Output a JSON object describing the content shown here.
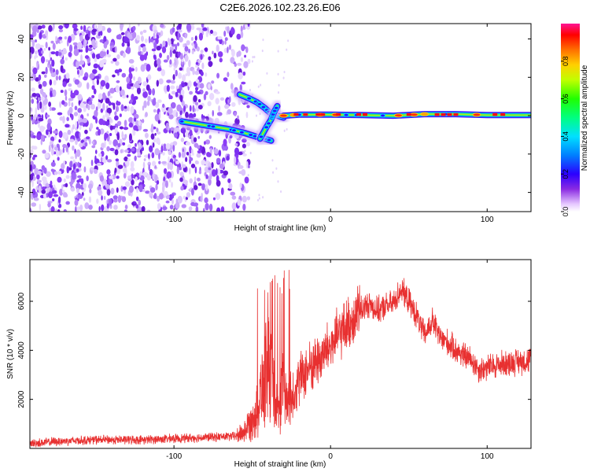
{
  "title": "C2E6.2026.102.23.26.E06",
  "chart_data": [
    {
      "type": "heatmap",
      "xlabel": "Height of straight line (km)",
      "ylabel": "Frequency (Hz)",
      "xlim": [
        -192,
        128
      ],
      "ylim": [
        -50,
        48
      ],
      "xticks": [
        -100,
        0,
        100
      ],
      "yticks": [
        -40,
        -20,
        0,
        20,
        40
      ],
      "noise_region_x": [
        -192,
        -60
      ],
      "signal_tracks": [
        {
          "x": [
            -95,
            -80,
            -65,
            -55,
            -47,
            -42,
            -38
          ],
          "y": [
            -3,
            -5,
            -7,
            -9,
            -11,
            -12,
            -13
          ]
        },
        {
          "x": [
            -58,
            -52,
            -47,
            -42,
            -38,
            -34,
            -30
          ],
          "y": [
            11,
            9,
            7,
            4,
            1,
            0,
            -1
          ]
        },
        {
          "x": [
            -45,
            -41,
            -38,
            -36,
            -34
          ],
          "y": [
            -12,
            -6,
            -2,
            2,
            5
          ]
        },
        {
          "x": [
            -30,
            -20,
            0,
            20,
            40,
            60,
            80,
            100,
            128
          ],
          "y": [
            0,
            0.5,
            0.5,
            0.3,
            0,
            0.8,
            0.8,
            0.3,
            0.3
          ]
        }
      ],
      "colorbar": {
        "label": "Normalized spectral amplitude",
        "ticks": [
          "0.0",
          "0.2",
          "0.4",
          "0.6",
          "0.8"
        ],
        "range": [
          0,
          1
        ]
      }
    },
    {
      "type": "line",
      "color": "#e83030",
      "xlabel": "Height of straight line (km)",
      "ylabel": "SNR (10 * v/v)",
      "xlim": [
        -192,
        128
      ],
      "ylim": [
        0,
        7700
      ],
      "xticks": [
        -100,
        0,
        100
      ],
      "yticks": [
        2000,
        4000,
        6000
      ],
      "envelope": {
        "x": [
          -192,
          -170,
          -150,
          -120,
          -100,
          -80,
          -60,
          -55,
          -50,
          -46,
          -42,
          -40,
          -37,
          -34,
          -32,
          -30,
          -28,
          -25,
          -20,
          -15,
          -10,
          -5,
          0,
          5,
          10,
          15,
          20,
          25,
          30,
          35,
          40,
          45,
          50,
          55,
          60,
          65,
          70,
          75,
          80,
          85,
          90,
          95,
          100,
          110,
          120,
          128
        ],
        "y": [
          200,
          300,
          350,
          350,
          400,
          450,
          500,
          700,
          1200,
          1900,
          3000,
          4000,
          2500,
          1500,
          2200,
          2600,
          1800,
          2200,
          2800,
          3200,
          3500,
          3800,
          4200,
          4600,
          5000,
          5300,
          5700,
          5900,
          5600,
          5800,
          5900,
          6500,
          6000,
          5400,
          4600,
          5200,
          4500,
          4300,
          4000,
          3800,
          3600,
          3200,
          3300,
          3450,
          3550,
          3600
        ]
      }
    }
  ]
}
